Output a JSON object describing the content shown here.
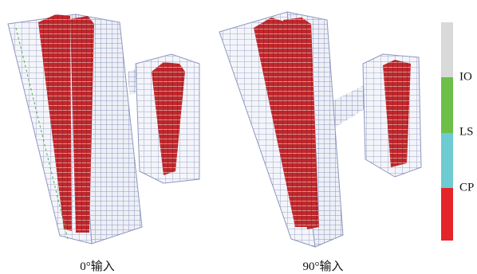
{
  "legend": {
    "labels": [
      "IO",
      "LS",
      "CP"
    ]
  },
  "captions": [
    "0°输入",
    "90°输入"
  ]
}
